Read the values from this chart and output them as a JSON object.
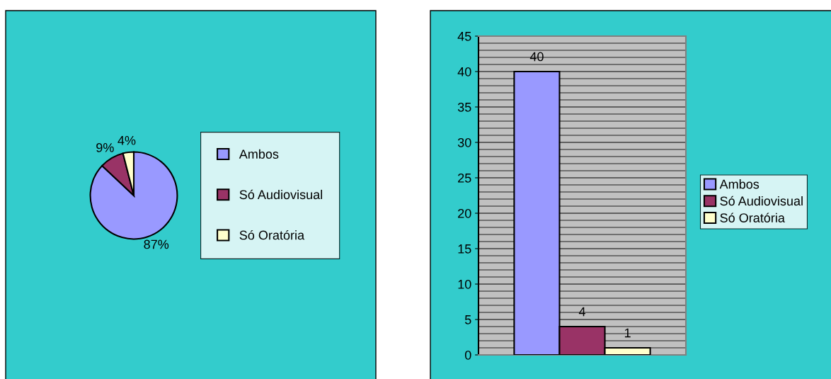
{
  "chart_data": [
    {
      "type": "pie",
      "categories": [
        "Ambos",
        "Só Audiovisual",
        "Só Oratória"
      ],
      "values": [
        87,
        9,
        4
      ],
      "colors": [
        "#9999ff",
        "#993366",
        "#ffffcc"
      ],
      "value_labels": [
        "87%",
        "9%",
        "4%"
      ],
      "legend": "right"
    },
    {
      "type": "bar",
      "categories": [
        null
      ],
      "series": [
        {
          "name": "Ambos",
          "color": "#9999ff",
          "values": [
            40
          ]
        },
        {
          "name": "Só Audiovisual",
          "color": "#993366",
          "values": [
            4
          ]
        },
        {
          "name": "Só Oratória",
          "color": "#ffffcc",
          "values": [
            1
          ]
        }
      ],
      "ylim": [
        0,
        45
      ],
      "yticks": [
        0,
        5,
        10,
        15,
        20,
        25,
        30,
        35,
        40,
        45
      ],
      "grid": "y",
      "data_labels": true,
      "legend": "right"
    }
  ]
}
